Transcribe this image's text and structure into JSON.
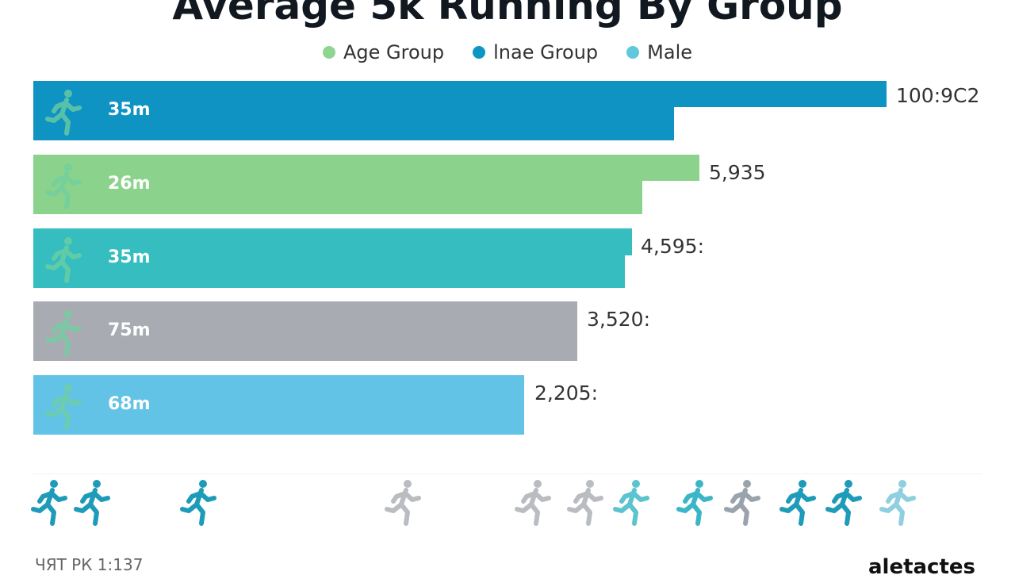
{
  "chart_data": {
    "type": "bar",
    "orientation": "horizontal",
    "title": "Average 5k Running By Group",
    "legend": [
      {
        "label": "Age Group",
        "color": "#8fd592"
      },
      {
        "label": "lnae Group",
        "color": "#0d96c1"
      },
      {
        "label": "Male",
        "color": "#5fc8da"
      }
    ],
    "legend_placement": "top",
    "grid": false,
    "bars": [
      {
        "inner_label": "35m",
        "value_label": "100:9C2",
        "color": "#0f93c3"
      },
      {
        "inner_label": "26m",
        "value_label": "5,935",
        "color": "#8bd38c"
      },
      {
        "inner_label": "35m",
        "value_label": "4,595:",
        "color": "#35bdbf"
      },
      {
        "inner_label": "75m",
        "value_label": "3,520:",
        "color": "#a8acb2"
      },
      {
        "inner_label": "68m",
        "value_label": "2,205:",
        "color": "#62c3e6"
      }
    ]
  },
  "footer": {
    "left": "ЧЯТ РК 1:137",
    "right": "aletactes"
  },
  "runner_icon_colors": [
    "#1e9bb8",
    "#1e9bb8",
    "#1e9bb8",
    "#b9bcc0",
    "#b9bcc0",
    "#b9bcc0",
    "#5cc3cf",
    "#3bb6c6",
    "#9aa3ab",
    "#1e9bb8",
    "#1e9bb8",
    "#8fd0e0"
  ]
}
